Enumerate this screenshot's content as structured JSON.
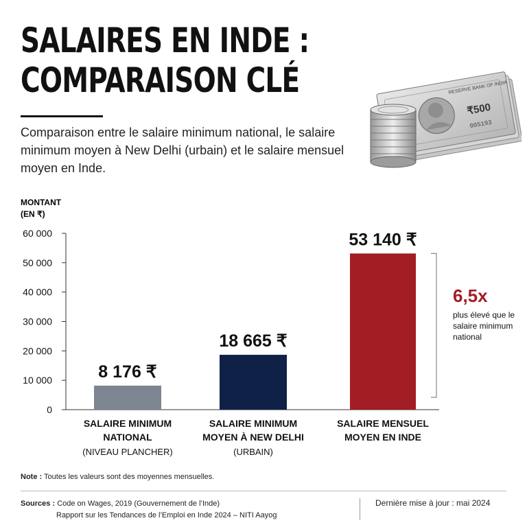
{
  "header": {
    "title_line1": "SALAIRES EN INDE :",
    "title_line2": "COMPARAISON CLÉ",
    "subtitle": "Comparaison entre le salaire minimum national, le salaire minimum moyen à New Delhi (urbain) et le salaire mensuel moyen en Inde."
  },
  "illustration": {
    "banknote_text": "RESERVE BANK OF INDIA",
    "banknote_value": "₹500",
    "banknote_serial": "005193"
  },
  "chart_data": {
    "type": "bar",
    "ylabel_line1": "MONTANT",
    "ylabel_line2": "(EN ₹)",
    "ylim": [
      0,
      60000
    ],
    "yticks": [
      0,
      10000,
      20000,
      30000,
      40000,
      50000,
      60000
    ],
    "ytick_labels": [
      "0",
      "10 000",
      "20 000",
      "30 000",
      "40 000",
      "50 000",
      "60 000"
    ],
    "grid": false,
    "categories": [
      {
        "line1": "SALAIRE MINIMUM",
        "line2": "NATIONAL",
        "sub": "(NIVEAU PLANCHER)"
      },
      {
        "line1": "SALAIRE MINIMUM",
        "line2": "MOYEN À NEW DELHI",
        "sub": "(URBAIN)"
      },
      {
        "line1": "SALAIRE MENSUEL",
        "line2": "MOYEN EN INDE",
        "sub": ""
      }
    ],
    "values": [
      8176,
      18665,
      53140
    ],
    "value_labels": [
      "8 176 ₹",
      "18 665 ₹",
      "53 140 ₹"
    ],
    "colors": [
      "#7d8590",
      "#0f2147",
      "#a31d24"
    ],
    "annotation": {
      "multiplier": "6,5x",
      "text_line1": "plus élevé que le",
      "text_line2": "salaire minimum",
      "text_line3": "national"
    }
  },
  "footer": {
    "note_label": "Note :",
    "note_text": "Toutes les valeurs sont des moyennes mensuelles.",
    "sources_label": "Sources :",
    "source1": "Code on Wages, 2019 (Gouvernement de l’Inde)",
    "source2": "Rapport sur les Tendances de l’Emploi en Inde 2024 – NITI Aayog",
    "updated": "Dernière mise à jour : mai 2024"
  }
}
